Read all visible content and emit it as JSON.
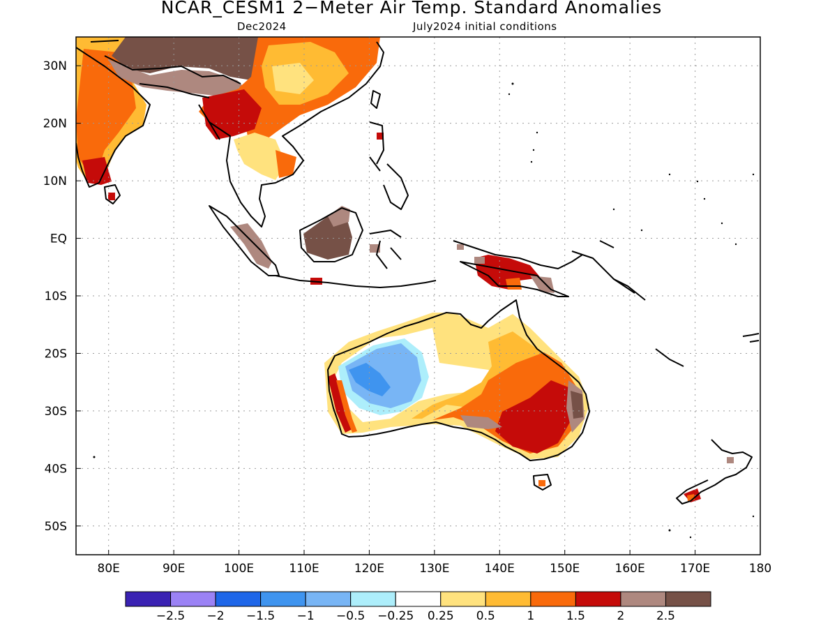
{
  "title": "NCAR_CESM1 2−Meter Air Temp. Standard Anomalies",
  "subtitle_left": "Dec2024",
  "subtitle_right": "July2024 initial conditions",
  "map": {
    "lon_range": [
      75,
      180
    ],
    "lat_range": [
      -55,
      35
    ],
    "lon_ticks": [
      {
        "lon": 80,
        "label": "80E"
      },
      {
        "lon": 90,
        "label": "90E"
      },
      {
        "lon": 100,
        "label": "100E"
      },
      {
        "lon": 110,
        "label": "110E"
      },
      {
        "lon": 120,
        "label": "120E"
      },
      {
        "lon": 130,
        "label": "130E"
      },
      {
        "lon": 140,
        "label": "140E"
      },
      {
        "lon": 150,
        "label": "150E"
      },
      {
        "lon": 160,
        "label": "160E"
      },
      {
        "lon": 170,
        "label": "170E"
      },
      {
        "lon": 180,
        "label": "180"
      }
    ],
    "lat_ticks": [
      {
        "lat": 30,
        "label": "30N"
      },
      {
        "lat": 20,
        "label": "20N"
      },
      {
        "lat": 10,
        "label": "10N"
      },
      {
        "lat": 0,
        "label": "EQ"
      },
      {
        "lat": -10,
        "label": "10S"
      },
      {
        "lat": -20,
        "label": "20S"
      },
      {
        "lat": -30,
        "label": "30S"
      },
      {
        "lat": -40,
        "label": "40S"
      },
      {
        "lat": -50,
        "label": "50S"
      }
    ]
  },
  "legend": {
    "colors": [
      "#3a22b3",
      "#9b82f5",
      "#1e66e8",
      "#3f94ef",
      "#78b5f5",
      "#adeefb",
      "#ffffff",
      "#ffe27e",
      "#ffbb33",
      "#f96a0b",
      "#c50b09",
      "#ae887f",
      "#765147"
    ],
    "labels": [
      "−2.5",
      "−2",
      "−1.5",
      "−1",
      "−0.5",
      "−0.25",
      "0.25",
      "0.5",
      "1",
      "1.5",
      "2",
      "2.5"
    ]
  }
}
